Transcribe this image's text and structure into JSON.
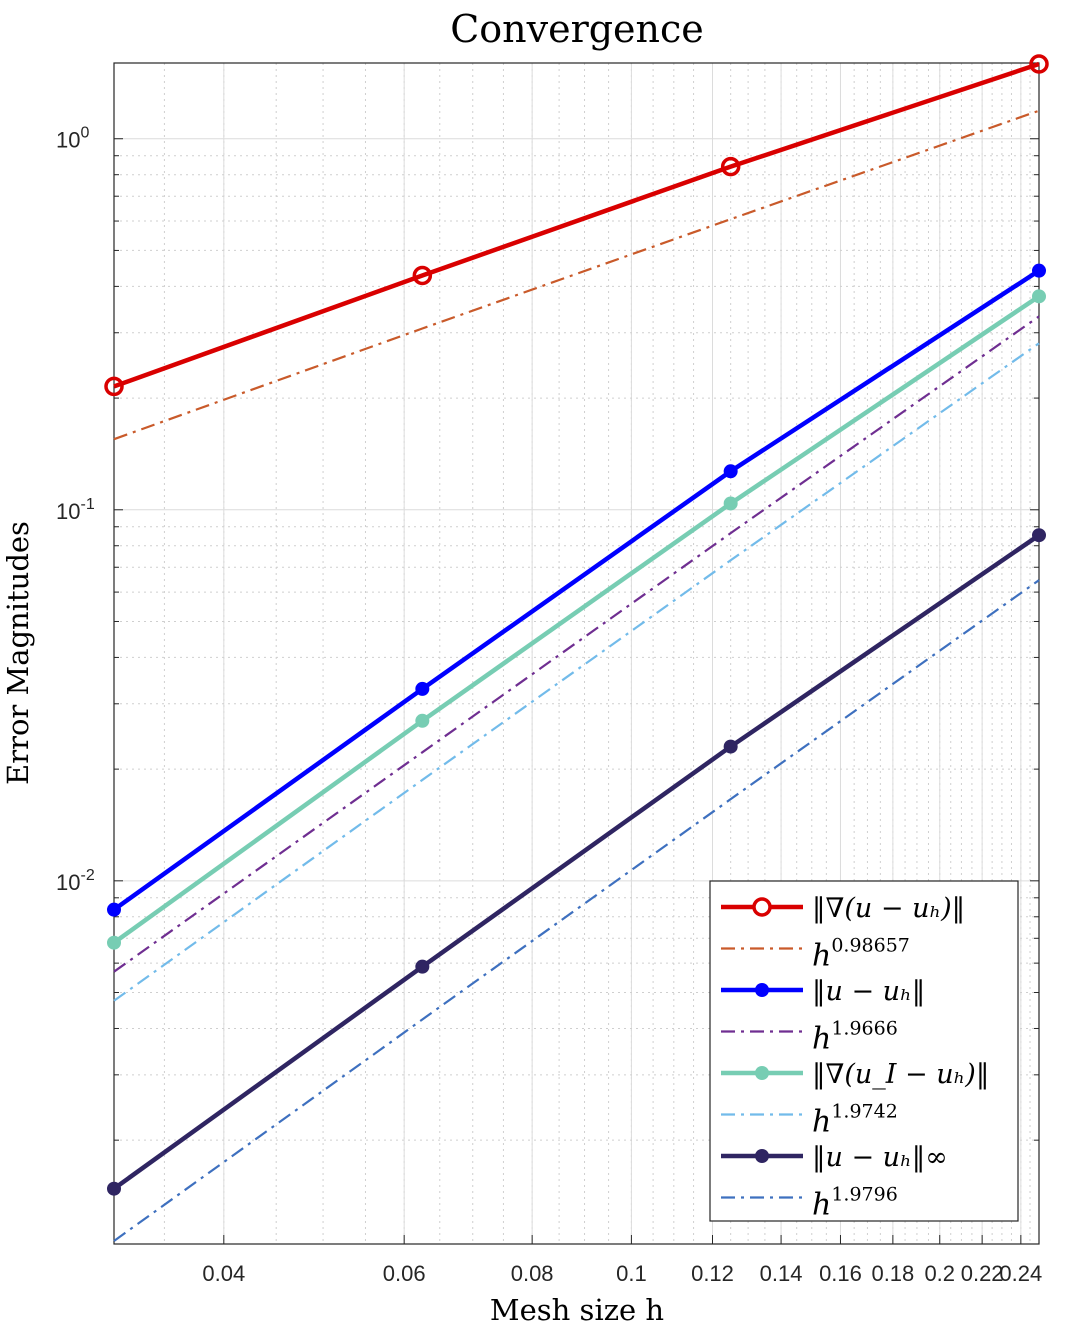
{
  "chart_data": {
    "type": "line",
    "title": "Convergence",
    "xlabel": "Mesh size h",
    "ylabel": "Error Magnitudes",
    "xscale": "log",
    "yscale": "log",
    "xlim": [
      0.03125,
      0.25
    ],
    "ylim": [
      0.00105,
      1.6
    ],
    "grid": "on (major and minor)",
    "legend_placement": "bottom-right",
    "x": [
      0.03125,
      0.0625,
      0.125,
      0.25
    ],
    "xticks": [
      0.04,
      0.06,
      0.08,
      0.1,
      0.12,
      0.14,
      0.16,
      0.18,
      0.2,
      0.22,
      0.24
    ],
    "xtick_labels": [
      "0.04",
      "0.06",
      "0.08",
      "0.1",
      "0.12",
      "0.14",
      "0.16",
      "0.18",
      "0.2",
      "0.22",
      "0.24"
    ],
    "yticks": [
      1,
      0.1,
      0.01
    ],
    "ytick_labels": [
      {
        "base": "10",
        "exp": "0"
      },
      {
        "base": "10",
        "exp": "-1"
      },
      {
        "base": "10",
        "exp": "-2"
      }
    ],
    "series": [
      {
        "name": "‖∇(u − uₕ)‖",
        "values": [
          0.215,
          0.428,
          0.841,
          1.59
        ],
        "color": "#d90000",
        "marker": "open-circle",
        "style": "solid"
      },
      {
        "name": "h^0.98657",
        "label_base": "h",
        "label_exp": "0.98657",
        "values": [
          0.155,
          0.308,
          0.607,
          1.19
        ],
        "color": "#c95a2a",
        "style": "dashdot"
      },
      {
        "name": "‖u − uₕ‖",
        "values": [
          0.00836,
          0.0329,
          0.127,
          0.441
        ],
        "color": "#0000ff",
        "marker": "filled-circle",
        "style": "solid"
      },
      {
        "name": "h^1.9666",
        "label_base": "h",
        "label_exp": "1.9666",
        "values": [
          0.00569,
          0.0222,
          0.0865,
          0.332
        ],
        "color": "#6f2e91",
        "style": "dashdot"
      },
      {
        "name": "‖∇(u_I − uₕ)‖",
        "values": [
          0.00681,
          0.027,
          0.104,
          0.376
        ],
        "color": "#77cdb3",
        "marker": "filled-circle",
        "style": "solid"
      },
      {
        "name": "h^1.9742",
        "label_base": "h",
        "label_exp": "1.9742",
        "values": [
          0.00475,
          0.0187,
          0.0731,
          0.281
        ],
        "color": "#72bbea",
        "style": "dashdot"
      },
      {
        "name": "‖u − uₕ‖∞",
        "values": [
          0.00148,
          0.00587,
          0.023,
          0.0854
        ],
        "color": "#2f2562",
        "marker": "filled-circle",
        "style": "solid"
      },
      {
        "name": "h^1.9796",
        "label_base": "h",
        "label_exp": "1.9796",
        "values": [
          0.00107,
          0.00423,
          0.0166,
          0.0646
        ],
        "color": "#3e70bf",
        "style": "dashdot"
      }
    ]
  }
}
